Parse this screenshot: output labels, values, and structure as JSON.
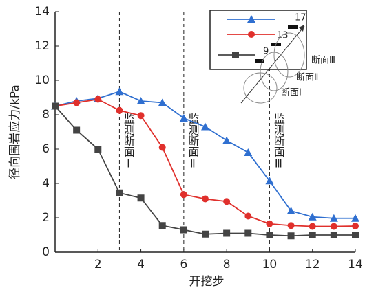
{
  "chart_data": {
    "type": "line",
    "x_label": "开挖步",
    "y_label": "径向围岩应力/kPa",
    "xlim": [
      0,
      14
    ],
    "xticks": [
      2,
      4,
      6,
      8,
      10,
      12,
      14
    ],
    "ylim": [
      0,
      14
    ],
    "yticks": [
      0,
      2,
      4,
      6,
      8,
      10,
      12,
      14
    ],
    "x": [
      0,
      1,
      2,
      3,
      4,
      5,
      6,
      7,
      8,
      9,
      10,
      11,
      12,
      13,
      14
    ],
    "series": [
      {
        "name": "17",
        "color": "#2f6fd0",
        "marker": "triangle",
        "values": [
          8.5,
          8.8,
          8.95,
          9.35,
          8.8,
          8.7,
          7.8,
          7.3,
          6.5,
          5.8,
          4.15,
          2.4,
          2.05,
          1.97,
          1.97
        ]
      },
      {
        "name": "13",
        "color": "#e0302c",
        "marker": "circle",
        "values": [
          8.5,
          8.7,
          8.9,
          8.25,
          7.95,
          6.1,
          3.35,
          3.1,
          2.95,
          2.1,
          1.65,
          1.55,
          1.5,
          1.5,
          1.52
        ]
      },
      {
        "name": "9",
        "color": "#444444",
        "marker": "square",
        "values": [
          8.5,
          7.1,
          6.0,
          3.45,
          3.15,
          1.55,
          1.3,
          1.05,
          1.1,
          1.1,
          1.0,
          0.95,
          1.0,
          1.0,
          1.0
        ]
      }
    ],
    "hline": 8.5,
    "vlines": [
      {
        "x": 3,
        "label": "监测断面Ⅰ"
      },
      {
        "x": 6,
        "label": "监测断面Ⅱ"
      },
      {
        "x": 10,
        "label": "监测断面Ⅲ"
      }
    ],
    "inset_labels": [
      "断面Ⅲ",
      "断面Ⅱ",
      "断面Ⅰ"
    ]
  }
}
